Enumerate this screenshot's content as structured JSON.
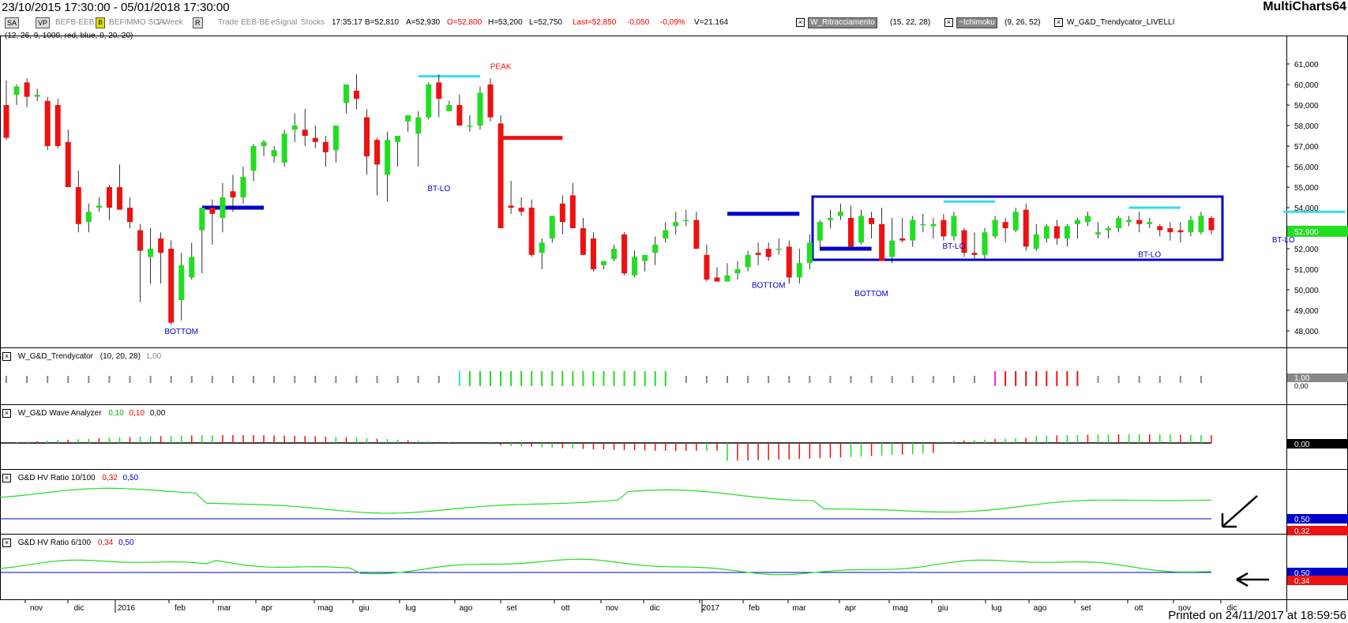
{
  "header": {
    "date_range": "23/10/2015 17:30:00 - 05/01/2018 17:30:00",
    "app": "MultiCharts64"
  },
  "legend": {
    "btn_sa": "SA",
    "btn_vp": "VP",
    "symbol": "BEFB-EEB",
    "btn_b": "B",
    "name": "BEFIMMO SCA",
    "period": "1 Week",
    "btn_r": "R",
    "trade": "Trade",
    "symbol2": "EEB-BE",
    "feed": "eSignal",
    "type": "Stocks",
    "time": "17:35:17",
    "bid": "B=52,810",
    "ask": "A=52,930",
    "open": "O=52,800",
    "high": "H=53,200",
    "low": "L=52,750",
    "last": "Last=52,850",
    "chg": "-0,050",
    "pct": "-0,09%",
    "vol": "V=21.164",
    "ind1": "W_Ritracciamento",
    "ind1_params": "(15, 22, 28)",
    "ind2": "~Ichimoku",
    "ind2_params": "(9, 26, 52)",
    "ind3": "W_G&D_Trendycator_LIVELLI",
    "ind3_params": "(12, 26, 9, 1000, red, blue, 0, 20, 20)"
  },
  "panels": {
    "p2": {
      "name": "W_G&D_Trendycator",
      "params": "(10, 20, 28)",
      "value": "1,00",
      "price_label": "1,00",
      "zero_label": "0,00"
    },
    "p3": {
      "name": "W_G&D Wave Analyzer",
      "v1": "0,10",
      "v2": "0,10",
      "v3": "0,00",
      "price_label": "0,00"
    },
    "p4": {
      "name": "G&D HV Ratio 10/100",
      "v1": "0,32",
      "v2": "0,50",
      "label_blue": "0,50",
      "label_red": "0,32"
    },
    "p5": {
      "name": "G&D HV Ratio 6/100",
      "v1": "0,34",
      "v2": "0,50",
      "label_blue": "0,50",
      "label_red": "0,34"
    }
  },
  "footer": "Printed on 24/11/2017 at 18:59:56",
  "colors": {
    "up": "#22dd22",
    "down": "#ee1111",
    "blue_line": "#0000cc",
    "cyan": "#33ddee",
    "green_line": "#22dd22"
  },
  "chart_data": {
    "type": "candlestick",
    "timeframe": "weekly",
    "ylim": [
      47000,
      62000
    ],
    "yticks": [
      "61,000",
      "60,000",
      "59,000",
      "58,000",
      "57,000",
      "56,000",
      "55,000",
      "54,000",
      "53,000",
      "52,000",
      "51,000",
      "50,000",
      "49,000",
      "48,000"
    ],
    "last_price_label": "52,900",
    "xticks": [
      "nov",
      "dic",
      "2016",
      "feb",
      "mar",
      "apr",
      "mag",
      "giu",
      "lug",
      "ago",
      "set",
      "ott",
      "nov",
      "dic",
      "2017",
      "feb",
      "mar",
      "apr",
      "mag",
      "giu",
      "lug",
      "ago",
      "set",
      "ott",
      "nov",
      "dic"
    ],
    "annotations": [
      "BOTTOM",
      "PEAK",
      "BT-LO",
      "BOTTOM",
      "BOTTOM",
      "BT-LO",
      "BT-LO",
      "BT-LO"
    ],
    "candles": [
      [
        59.0,
        60.2,
        57.3,
        57.4
      ],
      [
        59.5,
        60.0,
        59.0,
        59.9
      ],
      [
        60.1,
        60.3,
        58.9,
        59.4
      ],
      [
        59.4,
        59.8,
        59.2,
        59.5
      ],
      [
        59.2,
        59.4,
        56.8,
        57.0
      ],
      [
        59.0,
        59.3,
        56.9,
        57.0
      ],
      [
        57.2,
        57.8,
        55.0,
        55.0
      ],
      [
        55.0,
        55.8,
        52.8,
        53.2
      ],
      [
        53.3,
        54.2,
        52.8,
        53.8
      ],
      [
        54.0,
        54.5,
        53.8,
        54.1
      ],
      [
        55.0,
        55.1,
        53.4,
        54.0
      ],
      [
        55.0,
        56.1,
        54.0,
        53.9
      ],
      [
        54.0,
        54.5,
        53.0,
        53.3
      ],
      [
        52.9,
        53.2,
        49.4,
        51.9
      ],
      [
        51.6,
        53.0,
        50.3,
        52.0
      ],
      [
        52.5,
        52.8,
        50.3,
        51.8
      ],
      [
        52.0,
        52.4,
        48.3,
        48.4
      ],
      [
        49.5,
        51.8,
        48.5,
        51.2
      ],
      [
        50.6,
        52.3,
        50.5,
        51.6
      ],
      [
        52.9,
        54.0,
        50.8,
        54.0
      ],
      [
        54.0,
        54.4,
        52.2,
        53.7
      ],
      [
        53.5,
        55.2,
        52.8,
        54.5
      ],
      [
        54.8,
        55.6,
        53.8,
        54.5
      ],
      [
        54.5,
        56.0,
        54.2,
        55.5
      ],
      [
        55.8,
        57.1,
        55.3,
        57.0
      ],
      [
        57.0,
        57.3,
        56.5,
        57.2
      ],
      [
        56.5,
        57.0,
        56.2,
        56.8
      ],
      [
        56.2,
        57.8,
        56.0,
        57.6
      ],
      [
        57.8,
        58.6,
        57.2,
        58.0
      ],
      [
        57.8,
        58.8,
        57.0,
        57.5
      ],
      [
        57.4,
        58.0,
        56.9,
        57.2
      ],
      [
        57.2,
        57.5,
        56.0,
        56.7
      ],
      [
        56.8,
        58.0,
        56.2,
        58.0
      ],
      [
        59.1,
        60.0,
        58.6,
        60.0
      ],
      [
        59.7,
        60.5,
        58.8,
        59.3
      ],
      [
        58.4,
        58.8,
        55.6,
        56.5
      ],
      [
        57.3,
        57.4,
        54.6,
        56.1
      ],
      [
        55.6,
        57.7,
        54.3,
        57.3
      ],
      [
        57.2,
        57.5,
        56.0,
        57.5
      ],
      [
        58.2,
        58.5,
        57.7,
        58.5
      ],
      [
        57.6,
        58.7,
        56.0,
        58.4
      ],
      [
        58.4,
        60.1,
        58.3,
        60.0
      ],
      [
        60.1,
        60.5,
        58.4,
        59.3
      ],
      [
        58.7,
        59.2,
        58.7,
        59.0
      ],
      [
        59.0,
        59.5,
        58.0,
        58.0
      ],
      [
        58.0,
        58.5,
        57.7,
        58.0
      ],
      [
        58.0,
        59.9,
        57.8,
        59.6
      ],
      [
        60.0,
        60.3,
        58.2,
        58.4
      ],
      [
        58.1,
        58.5,
        53.6,
        53.0
      ],
      [
        54.1,
        55.3,
        53.7,
        54.0
      ],
      [
        54.0,
        54.5,
        53.6,
        53.8
      ],
      [
        54.0,
        54.4,
        51.6,
        51.7
      ],
      [
        51.8,
        52.5,
        51.0,
        52.3
      ],
      [
        52.5,
        53.5,
        52.3,
        53.6
      ],
      [
        54.2,
        54.6,
        52.7,
        53.3
      ],
      [
        54.6,
        55.2,
        53.2,
        53.0
      ],
      [
        53.0,
        53.5,
        51.7,
        51.7
      ],
      [
        52.5,
        52.8,
        50.9,
        51.0
      ],
      [
        51.2,
        51.3,
        51.0,
        51.4
      ],
      [
        51.5,
        52.2,
        51.4,
        52.0
      ],
      [
        52.7,
        52.8,
        50.7,
        50.8
      ],
      [
        50.7,
        51.9,
        50.6,
        51.6
      ],
      [
        51.4,
        51.6,
        50.9,
        51.7
      ],
      [
        51.8,
        52.6,
        51.2,
        52.2
      ],
      [
        52.5,
        53.3,
        52.3,
        52.9
      ],
      [
        53.1,
        53.8,
        52.7,
        53.3
      ],
      [
        53.4,
        53.9,
        53.1,
        53.4
      ],
      [
        53.4,
        53.8,
        52.2,
        52.0
      ],
      [
        51.7,
        52.2,
        50.4,
        50.5
      ],
      [
        50.6,
        51.1,
        50.4,
        50.4
      ],
      [
        50.4,
        51.3,
        50.5,
        50.7
      ],
      [
        50.8,
        51.4,
        50.5,
        51.0
      ],
      [
        51.1,
        51.9,
        50.9,
        51.7
      ],
      [
        51.8,
        52.3,
        51.2,
        51.7
      ],
      [
        52.0,
        52.3,
        51.4,
        51.6
      ],
      [
        52.0,
        52.5,
        51.7,
        52.0
      ],
      [
        52.1,
        52.4,
        50.3,
        50.6
      ],
      [
        50.6,
        52.0,
        50.3,
        51.3
      ],
      [
        51.3,
        52.7,
        51.0,
        52.3
      ],
      [
        52.4,
        53.4,
        51.9,
        53.3
      ],
      [
        53.4,
        53.9,
        53.0,
        53.5
      ],
      [
        53.6,
        54.2,
        53.4,
        53.8
      ],
      [
        53.5,
        54.1,
        52.3,
        52.1
      ],
      [
        52.3,
        53.9,
        52.2,
        53.6
      ],
      [
        53.5,
        53.8,
        52.5,
        53.2
      ],
      [
        53.2,
        54.0,
        51.9,
        51.4
      ],
      [
        51.6,
        53.5,
        51.3,
        52.4
      ],
      [
        52.5,
        53.5,
        52.3,
        52.4
      ],
      [
        52.4,
        53.6,
        52.1,
        53.4
      ],
      [
        53.2,
        53.7,
        52.8,
        53.2
      ],
      [
        53.1,
        53.5,
        52.5,
        53.2
      ],
      [
        53.4,
        53.7,
        52.4,
        52.6
      ],
      [
        52.6,
        53.8,
        52.4,
        53.6
      ],
      [
        52.9,
        53.0,
        51.6,
        51.8
      ],
      [
        51.8,
        52.8,
        51.4,
        51.7
      ],
      [
        51.7,
        53.0,
        51.4,
        52.8
      ],
      [
        52.6,
        53.6,
        52.5,
        53.4
      ],
      [
        53.3,
        53.5,
        52.3,
        53.0
      ],
      [
        52.9,
        54.0,
        52.8,
        53.8
      ],
      [
        53.9,
        54.2,
        51.9,
        52.1
      ],
      [
        52.0,
        53.2,
        51.9,
        52.7
      ],
      [
        52.5,
        53.2,
        52.3,
        53.1
      ],
      [
        53.1,
        53.4,
        52.2,
        52.5
      ],
      [
        52.5,
        53.2,
        52.1,
        53.1
      ],
      [
        53.2,
        53.5,
        52.5,
        53.4
      ],
      [
        53.3,
        53.8,
        53.1,
        53.6
      ],
      [
        52.7,
        53.3,
        52.5,
        52.8
      ],
      [
        52.9,
        53.1,
        52.5,
        53.0
      ],
      [
        53.0,
        53.6,
        52.8,
        53.5
      ],
      [
        53.3,
        53.6,
        53.1,
        53.4
      ],
      [
        53.4,
        53.8,
        52.8,
        53.2
      ],
      [
        53.2,
        53.5,
        53.0,
        53.3
      ],
      [
        53.1,
        53.2,
        52.6,
        52.9
      ],
      [
        53.0,
        53.3,
        52.4,
        52.8
      ],
      [
        52.9,
        53.3,
        52.3,
        52.8
      ],
      [
        52.8,
        53.6,
        52.6,
        53.4
      ],
      [
        52.8,
        53.8,
        52.7,
        53.6
      ],
      [
        53.5,
        53.6,
        52.7,
        52.9
      ]
    ],
    "levels": [
      {
        "color": "blue",
        "i0": 19,
        "i1": 25,
        "y": 54.0
      },
      {
        "color": "cyan",
        "i0": 40,
        "i1": 46,
        "y": 60.4
      },
      {
        "color": "red",
        "i0": 48,
        "i1": 54,
        "y": 57.4
      },
      {
        "color": "blue",
        "i0": 70,
        "i1": 77,
        "y": 53.7
      },
      {
        "color": "blue",
        "i0": 79,
        "i1": 84,
        "y": 52.0
      },
      {
        "color": "cyan",
        "i0": 91,
        "i1": 96,
        "y": 54.3
      },
      {
        "color": "cyan",
        "i0": 109,
        "i1": 114,
        "y": 54.0
      },
      {
        "color": "cyan",
        "i0": 124,
        "i1": 130,
        "y": 53.8
      }
    ]
  }
}
